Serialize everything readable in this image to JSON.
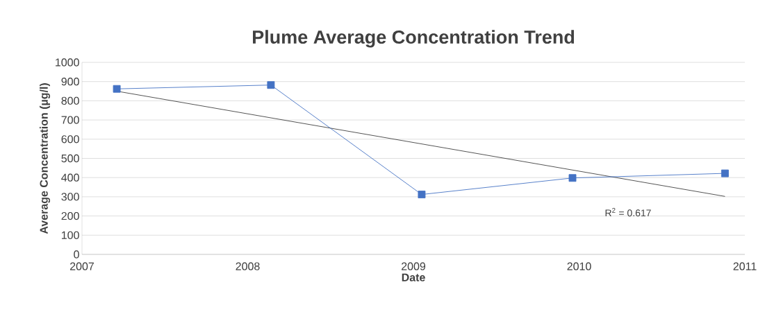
{
  "chart_data": {
    "type": "line",
    "title": "Plume Average Concentration Trend",
    "xlabel": "Date",
    "ylabel": "Average Concentration (µg/l)",
    "x": [
      2007.21,
      2008.14,
      2009.05,
      2009.96,
      2010.88
    ],
    "series": [
      {
        "color": "#4472c4",
        "values": [
          862,
          882,
          312,
          398,
          422
        ],
        "marker": "square"
      },
      {
        "type": "line",
        "color": "#404040",
        "x": [
          2007.21,
          2010.88
        ],
        "values": [
          850,
          302
        ],
        "marker": "none"
      }
    ],
    "xlim": [
      2007,
      2011
    ],
    "xticks": [
      2007,
      2008,
      2009,
      2010,
      2011
    ],
    "ylim": [
      0,
      1000
    ],
    "yticks": [
      0,
      100,
      200,
      300,
      400,
      500,
      600,
      700,
      800,
      900,
      1000
    ],
    "grid": "y",
    "annotations": [
      "R$^{2}$ = 0.617"
    ]
  }
}
